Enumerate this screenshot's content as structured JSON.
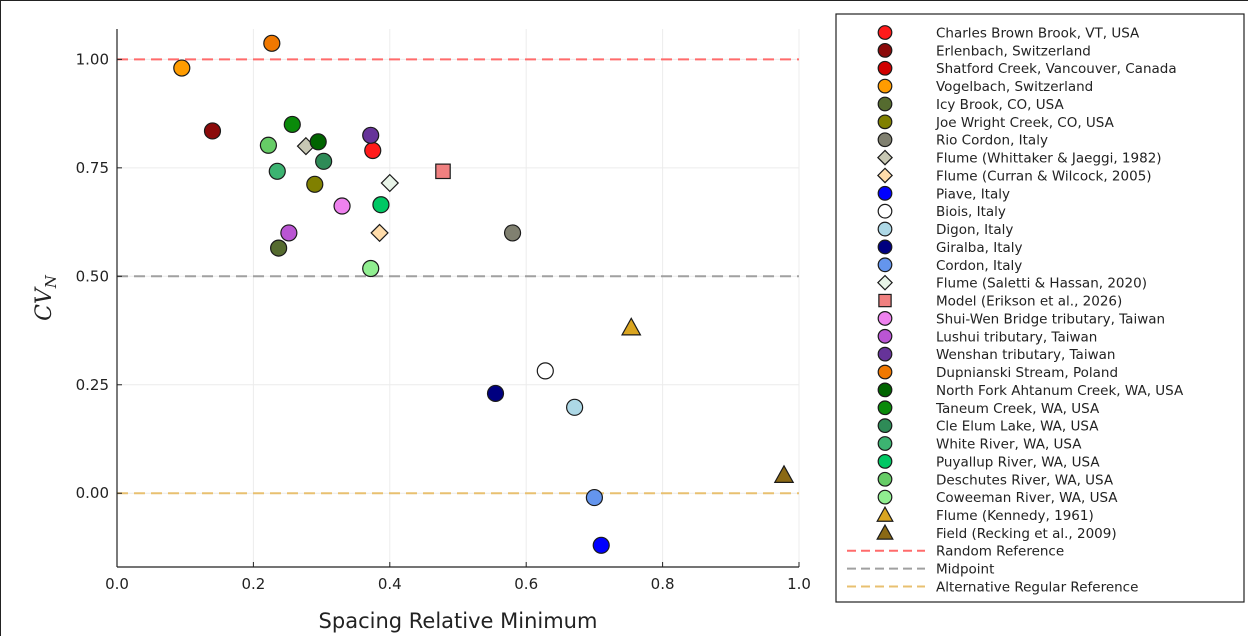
{
  "chart_data": {
    "type": "scatter",
    "xlabel": "Spacing Relative Minimum",
    "ylabel_main": "CV",
    "ylabel_sub": "N",
    "xlim": [
      0.0,
      1.0
    ],
    "ylim": [
      -0.17,
      1.07
    ],
    "xticks": [
      0.0,
      0.2,
      0.4,
      0.6,
      0.8,
      1.0
    ],
    "xtick_labels": [
      "0.0",
      "0.2",
      "0.4",
      "0.6",
      "0.8",
      "1.0"
    ],
    "yticks": [
      0.0,
      0.25,
      0.5,
      0.75,
      1.0
    ],
    "ytick_labels": [
      "0.00",
      "0.25",
      "0.50",
      "0.75",
      "1.00"
    ],
    "grid": true,
    "legend_position": "outside-right",
    "series": [
      {
        "name": "Charles Brown Brook, VT, USA",
        "marker": "circle",
        "color": "#ff1a1a",
        "points": [
          [
            0.375,
            0.79
          ]
        ]
      },
      {
        "name": "Erlenbach, Switzerland",
        "marker": "circle",
        "color": "#8b0a0a",
        "points": [
          [
            0.14,
            0.835
          ]
        ]
      },
      {
        "name": "Shatford Creek, Vancouver, Canada",
        "marker": "circle",
        "color": "#d00000",
        "points": []
      },
      {
        "name": "Vogelbach, Switzerland",
        "marker": "circle",
        "color": "#ff9c00",
        "points": [
          [
            0.095,
            0.98
          ]
        ]
      },
      {
        "name": "Icy Brook, CO, USA",
        "marker": "circle",
        "color": "#556b2f",
        "points": [
          [
            0.237,
            0.565
          ]
        ]
      },
      {
        "name": "Joe Wright Creek, CO, USA",
        "marker": "circle",
        "color": "#808000",
        "points": [
          [
            0.29,
            0.712
          ]
        ]
      },
      {
        "name": "Rio Cordon, Italy",
        "marker": "circle",
        "color": "#808070",
        "points": [
          [
            0.58,
            0.6
          ]
        ]
      },
      {
        "name": "Flume (Whittaker & Jaeggi, 1982)",
        "marker": "diamond",
        "color": "#c8c8b4",
        "points": [
          [
            0.277,
            0.8
          ]
        ]
      },
      {
        "name": "Flume (Curran & Wilcock, 2005)",
        "marker": "diamond",
        "color": "#ffdcaa",
        "points": [
          [
            0.385,
            0.6
          ]
        ]
      },
      {
        "name": "Piave, Italy",
        "marker": "circle",
        "color": "#0000ff",
        "points": [
          [
            0.71,
            -0.12
          ]
        ]
      },
      {
        "name": "Biois, Italy",
        "marker": "circle",
        "color": "#ffffff",
        "points": [
          [
            0.628,
            0.282
          ]
        ]
      },
      {
        "name": "Digon, Italy",
        "marker": "circle",
        "color": "#add8e6",
        "points": [
          [
            0.671,
            0.198
          ]
        ]
      },
      {
        "name": "Giralba, Italy",
        "marker": "circle",
        "color": "#000080",
        "points": [
          [
            0.555,
            0.23
          ]
        ]
      },
      {
        "name": "Cordon, Italy",
        "marker": "circle",
        "color": "#6495ed",
        "points": [
          [
            0.7,
            -0.01
          ]
        ]
      },
      {
        "name": "Flume (Saletti & Hassan, 2020)",
        "marker": "diamond",
        "color": "#e8f4e8",
        "points": [
          [
            0.4,
            0.715
          ]
        ]
      },
      {
        "name": "Model (Erikson et al., 2026)",
        "marker": "square",
        "color": "#f08080",
        "points": [
          [
            0.478,
            0.742
          ]
        ]
      },
      {
        "name": "Shui-Wen Bridge tributary, Taiwan",
        "marker": "circle",
        "color": "#ee82ee",
        "points": [
          [
            0.33,
            0.662
          ]
        ]
      },
      {
        "name": "Lushui tributary, Taiwan",
        "marker": "circle",
        "color": "#ba55d3",
        "points": [
          [
            0.252,
            0.6
          ]
        ]
      },
      {
        "name": "Wenshan tributary, Taiwan",
        "marker": "circle",
        "color": "#663399",
        "points": [
          [
            0.372,
            0.825
          ]
        ]
      },
      {
        "name": "Dupnianski Stream, Poland",
        "marker": "circle",
        "color": "#f07800",
        "points": [
          [
            0.227,
            1.037
          ]
        ]
      },
      {
        "name": "North Fork Ahtanum Creek, WA, USA",
        "marker": "circle",
        "color": "#006400",
        "points": [
          [
            0.295,
            0.81
          ]
        ]
      },
      {
        "name": "Taneum Creek, WA, USA",
        "marker": "circle",
        "color": "#0a8a0a",
        "points": [
          [
            0.257,
            0.85
          ]
        ]
      },
      {
        "name": "Cle Elum Lake, WA, USA",
        "marker": "circle",
        "color": "#2e8b57",
        "points": [
          [
            0.303,
            0.765
          ]
        ]
      },
      {
        "name": "White River, WA, USA",
        "marker": "circle",
        "color": "#3cb371",
        "points": [
          [
            0.235,
            0.742
          ]
        ]
      },
      {
        "name": "Puyallup River, WA, USA",
        "marker": "circle",
        "color": "#00c864",
        "points": [
          [
            0.387,
            0.665
          ]
        ]
      },
      {
        "name": "Deschutes River, WA, USA",
        "marker": "circle",
        "color": "#66cc66",
        "points": [
          [
            0.222,
            0.802
          ]
        ]
      },
      {
        "name": "Coweeman River, WA, USA",
        "marker": "circle",
        "color": "#90ee90",
        "points": [
          [
            0.372,
            0.518
          ]
        ]
      },
      {
        "name": "Flume (Kennedy, 1961)",
        "marker": "triangle",
        "color": "#daa520",
        "points": [
          [
            0.754,
            0.382
          ]
        ]
      },
      {
        "name": "Field (Recking et al., 2009)",
        "marker": "triangle",
        "color": "#8b6914",
        "points": [
          [
            0.978,
            0.042
          ]
        ]
      }
    ],
    "reference_lines": [
      {
        "name": "Random Reference",
        "y": 1.0,
        "color": "#ff6b6b"
      },
      {
        "name": "Midpoint",
        "y": 0.5,
        "color": "#a0a0a0"
      },
      {
        "name": "Alternative Regular Reference",
        "y": 0.0,
        "color": "#e8c070"
      }
    ]
  }
}
